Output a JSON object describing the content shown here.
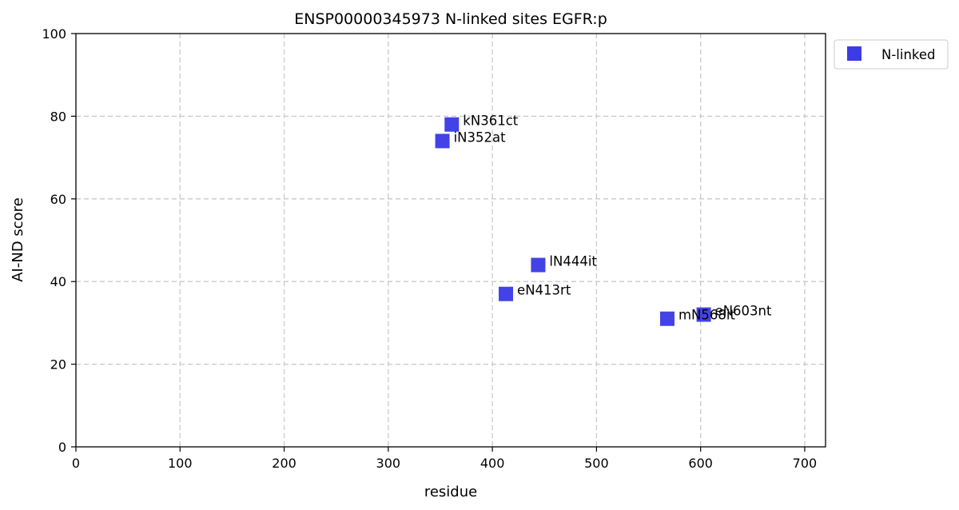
{
  "chart_data": {
    "type": "scatter",
    "title": "ENSP00000345973 N-linked sites EGFR:p",
    "xlabel": "residue",
    "ylabel": "AI-ND score",
    "xlim": [
      0,
      720
    ],
    "ylim": [
      0,
      100
    ],
    "xticks": [
      0,
      100,
      200,
      300,
      400,
      500,
      600,
      700
    ],
    "yticks": [
      0,
      20,
      40,
      60,
      80,
      100
    ],
    "grid": true,
    "legend_position": "outside-top-right",
    "series": [
      {
        "name": "N-linked",
        "color": "#3c3ce6",
        "marker": "square",
        "points": [
          {
            "x": 361,
            "y": 78,
            "label": "kN361ct"
          },
          {
            "x": 352,
            "y": 74,
            "label": "iN352at"
          },
          {
            "x": 444,
            "y": 44,
            "label": "lN444it"
          },
          {
            "x": 413,
            "y": 37,
            "label": "eN413rt"
          },
          {
            "x": 603,
            "y": 32,
            "label": "eN603nt"
          },
          {
            "x": 568,
            "y": 31,
            "label": "mN568it"
          }
        ]
      }
    ]
  }
}
